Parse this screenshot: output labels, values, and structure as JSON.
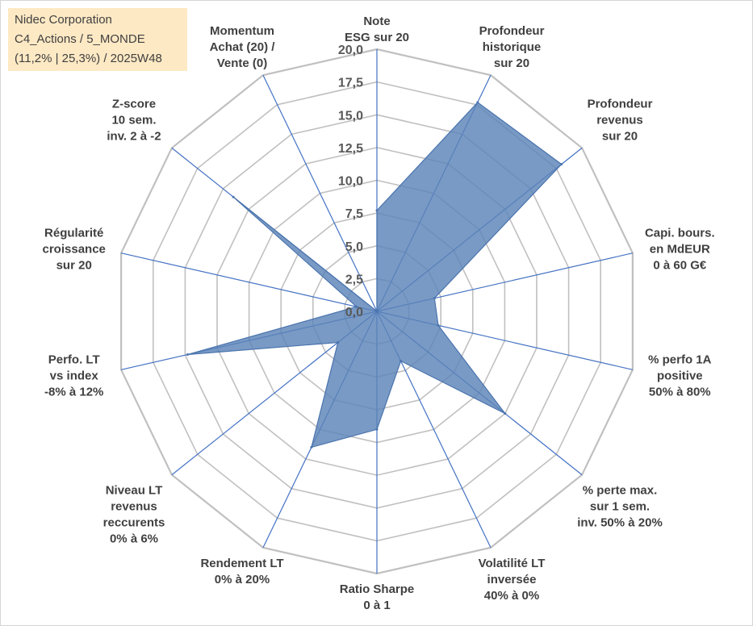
{
  "header": {
    "company": "Nidec Corporation",
    "portfolio": "C4_Actions / 5_MONDE",
    "stats": "(11,2% | 25,3%) / 2025W48"
  },
  "chart_data": {
    "type": "radar",
    "title": "",
    "range": [
      0,
      20
    ],
    "tick_step": 2.5,
    "tick_labels": [
      "0,0",
      "2,5",
      "5,0",
      "7,5",
      "10,0",
      "12,5",
      "15,0",
      "17,5",
      "20,0"
    ],
    "axes": [
      {
        "label": [
          "Note",
          "ESG sur 20"
        ]
      },
      {
        "label": [
          "Profondeur",
          "historique",
          "sur 20"
        ]
      },
      {
        "label": [
          "Profondeur",
          "revenus",
          "sur 20"
        ]
      },
      {
        "label": [
          "Capi. bours.",
          "en MdEUR",
          "0 à 60 G€"
        ]
      },
      {
        "label": [
          "% perfo 1A",
          "positive",
          "50% à 80%"
        ]
      },
      {
        "label": [
          "% perte max.",
          "sur 1 sem.",
          "inv. 50% à 20%"
        ]
      },
      {
        "label": [
          "Volatilité LT",
          "inversée",
          "40% à 0%"
        ]
      },
      {
        "label": [
          "Ratio Sharpe",
          "0 à 1"
        ]
      },
      {
        "label": [
          "Rendement LT",
          "0% à 20%"
        ]
      },
      {
        "label": [
          "Niveau LT",
          "revenus",
          "reccurents",
          "0% à 6%"
        ]
      },
      {
        "label": [
          "Perfo. LT",
          "vs index",
          "-8% à 12%"
        ]
      },
      {
        "label": [
          "Régularité",
          "croissance",
          "sur 20"
        ]
      },
      {
        "label": [
          "Z-score",
          "10 sem.",
          "inv. 2 à -2"
        ]
      },
      {
        "label": [
          "Momentum",
          "Achat (20) /",
          "Vente (0)"
        ]
      }
    ],
    "series": [
      {
        "name": "Nidec Corporation",
        "values": [
          7.7,
          17.7,
          18.0,
          4.5,
          4.8,
          12.5,
          4.2,
          9.0,
          11.5,
          3.8,
          14.8,
          1.6,
          14.0,
          0
        ]
      }
    ],
    "colors": {
      "fill": "#5b84b8",
      "stroke": "#4a74ad",
      "grid": "#c0c0c0",
      "spoke": "#4472c4"
    }
  }
}
